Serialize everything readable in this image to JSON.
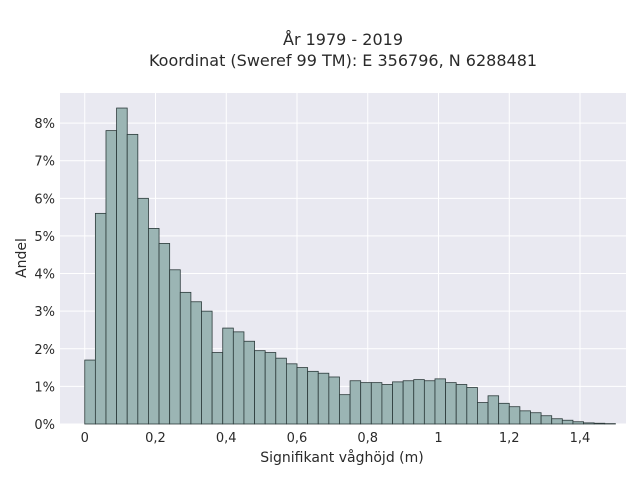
{
  "chart_data": {
    "type": "bar",
    "title_line1": "År 1979 - 2019",
    "title_line2": "Koordinat (Sweref 99 TM): E 356796, N 6288481",
    "xlabel": "Signifikant våghöjd (m)",
    "ylabel": "Andel",
    "bin_width": 0.03,
    "x_start": 0.0,
    "xlim": [
      -0.07,
      1.53
    ],
    "ylim": [
      0,
      8.8
    ],
    "x_ticks": [
      0,
      0.2,
      0.4,
      0.6,
      0.8,
      1.0,
      1.2,
      1.4
    ],
    "x_tick_labels": [
      "0",
      "0,2",
      "0,4",
      "0,6",
      "0,8",
      "1",
      "1,2",
      "1,4"
    ],
    "y_ticks": [
      0,
      1,
      2,
      3,
      4,
      5,
      6,
      7,
      8
    ],
    "y_tick_labels": [
      "0%",
      "1%",
      "2%",
      "3%",
      "4%",
      "5%",
      "6%",
      "7%",
      "8%"
    ],
    "grid": true,
    "values": [
      1.7,
      5.6,
      7.8,
      8.4,
      7.7,
      6.0,
      5.2,
      4.8,
      4.1,
      3.5,
      3.25,
      3.0,
      1.9,
      2.55,
      2.45,
      2.2,
      1.95,
      1.9,
      1.75,
      1.6,
      1.5,
      1.4,
      1.35,
      1.25,
      0.78,
      1.15,
      1.1,
      1.1,
      1.05,
      1.12,
      1.15,
      1.18,
      1.15,
      1.2,
      1.1,
      1.05,
      0.97,
      0.57,
      0.75,
      0.55,
      0.46,
      0.35,
      0.3,
      0.22,
      0.14,
      0.1,
      0.06,
      0.03,
      0.02,
      0.01
    ],
    "colors": {
      "bar_fill": "#9bb5b4",
      "bar_stroke": "#2b3a3a",
      "plot_bg": "#e9e9f1",
      "grid": "#ffffff"
    }
  }
}
